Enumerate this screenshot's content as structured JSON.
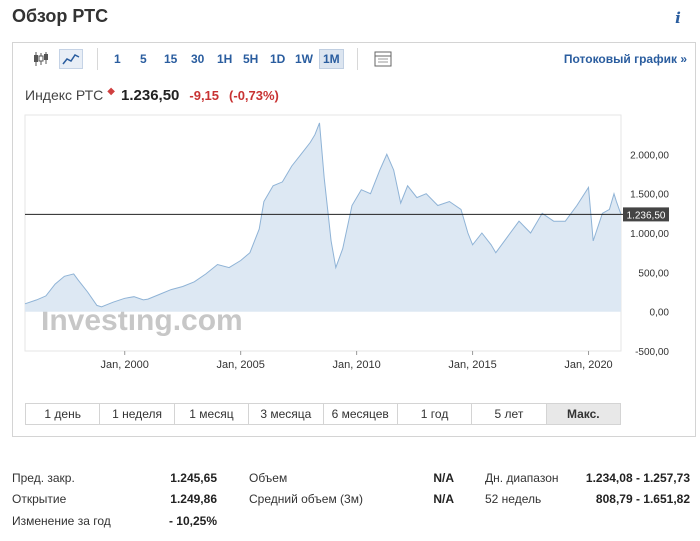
{
  "page": {
    "title": "Обзор РТС"
  },
  "toolbar": {
    "timeframes": [
      "1",
      "5",
      "15",
      "30",
      "1H",
      "5H",
      "1D",
      "1W",
      "1M"
    ],
    "selected_timeframe": "1M",
    "stream_link": "Потоковый график »"
  },
  "quote": {
    "name": "Индекс РТС",
    "price": "1.236,50",
    "change": "-9,15",
    "change_pct": "(-0,73%)"
  },
  "chart_data": {
    "type": "area",
    "title": "",
    "xlabel": "",
    "ylabel": "",
    "x_ticks": [
      {
        "label": "Jan, 2000",
        "year": 2000
      },
      {
        "label": "Jan, 2005",
        "year": 2005
      },
      {
        "label": "Jan, 2010",
        "year": 2010
      },
      {
        "label": "Jan, 2015",
        "year": 2015
      },
      {
        "label": "Jan, 2020",
        "year": 2020
      }
    ],
    "y_ticks": [
      {
        "label": "2.000,00",
        "value": 2000
      },
      {
        "label": "1.500,00",
        "value": 1500
      },
      {
        "label": "1.000,00",
        "value": 1000
      },
      {
        "label": "500,00",
        "value": 500
      },
      {
        "label": "0,00",
        "value": 0
      },
      {
        "label": "-500,00",
        "value": -500
      }
    ],
    "ylim": [
      -500,
      2500
    ],
    "xlim": [
      1995.7,
      2021.4
    ],
    "current_value": 1236.5,
    "current_label": "1.236,50",
    "grid": false,
    "series": [
      {
        "points": [
          [
            1995.7,
            100
          ],
          [
            1996.2,
            150
          ],
          [
            1996.6,
            200
          ],
          [
            1997.0,
            350
          ],
          [
            1997.4,
            450
          ],
          [
            1997.8,
            480
          ],
          [
            1998.0,
            400
          ],
          [
            1998.4,
            250
          ],
          [
            1998.8,
            80
          ],
          [
            1999.0,
            60
          ],
          [
            1999.5,
            120
          ],
          [
            2000.0,
            170
          ],
          [
            2000.4,
            190
          ],
          [
            2000.8,
            150
          ],
          [
            2001.0,
            160
          ],
          [
            2001.5,
            220
          ],
          [
            2002.0,
            280
          ],
          [
            2002.5,
            320
          ],
          [
            2003.0,
            380
          ],
          [
            2003.5,
            480
          ],
          [
            2004.0,
            600
          ],
          [
            2004.5,
            560
          ],
          [
            2005.0,
            650
          ],
          [
            2005.4,
            750
          ],
          [
            2005.8,
            1050
          ],
          [
            2006.0,
            1400
          ],
          [
            2006.4,
            1600
          ],
          [
            2006.8,
            1650
          ],
          [
            2007.2,
            1850
          ],
          [
            2007.6,
            2000
          ],
          [
            2008.0,
            2150
          ],
          [
            2008.2,
            2250
          ],
          [
            2008.4,
            2400
          ],
          [
            2008.6,
            1700
          ],
          [
            2008.9,
            900
          ],
          [
            2009.1,
            560
          ],
          [
            2009.4,
            800
          ],
          [
            2009.8,
            1350
          ],
          [
            2010.2,
            1550
          ],
          [
            2010.6,
            1500
          ],
          [
            2011.0,
            1800
          ],
          [
            2011.3,
            2000
          ],
          [
            2011.6,
            1800
          ],
          [
            2011.9,
            1380
          ],
          [
            2012.2,
            1600
          ],
          [
            2012.6,
            1450
          ],
          [
            2013.0,
            1500
          ],
          [
            2013.5,
            1350
          ],
          [
            2014.0,
            1400
          ],
          [
            2014.5,
            1300
          ],
          [
            2014.8,
            1000
          ],
          [
            2015.0,
            850
          ],
          [
            2015.4,
            1000
          ],
          [
            2015.8,
            850
          ],
          [
            2016.0,
            750
          ],
          [
            2016.5,
            950
          ],
          [
            2017.0,
            1150
          ],
          [
            2017.5,
            1000
          ],
          [
            2018.0,
            1250
          ],
          [
            2018.5,
            1150
          ],
          [
            2019.0,
            1150
          ],
          [
            2019.5,
            1350
          ],
          [
            2020.0,
            1580
          ],
          [
            2020.2,
            900
          ],
          [
            2020.6,
            1250
          ],
          [
            2020.9,
            1300
          ],
          [
            2021.1,
            1500
          ],
          [
            2021.2,
            1400
          ],
          [
            2021.4,
            1236.5
          ]
        ]
      }
    ]
  },
  "watermark": "Investing.com",
  "range_buttons": {
    "items": [
      "1 день",
      "1 неделя",
      "1 месяц",
      "3 месяца",
      "6 месяцев",
      "1 год",
      "5 лет",
      "Макс."
    ],
    "selected": "Макс."
  },
  "stats": {
    "prev_close": {
      "label": "Пред. закр.",
      "value": "1.245,65"
    },
    "open": {
      "label": "Открытие",
      "value": "1.249,86"
    },
    "year_change": {
      "label": "Изменение за год",
      "value": "- 10,25%"
    },
    "volume": {
      "label": "Объем",
      "value": "N/A"
    },
    "avg_volume": {
      "label": "Средний объем (3м)",
      "value": "N/A"
    },
    "day_range": {
      "label": "Дн. диапазон",
      "value": "1.234,08 - 1.257,73"
    },
    "week52": {
      "label": "52 недель",
      "value": "808,79 - 1.651,82"
    }
  },
  "colors": {
    "area_fill": "#dde8f3",
    "area_line": "#8fb3d6",
    "accent": "#2a5d9f",
    "negative": "#c83232"
  }
}
